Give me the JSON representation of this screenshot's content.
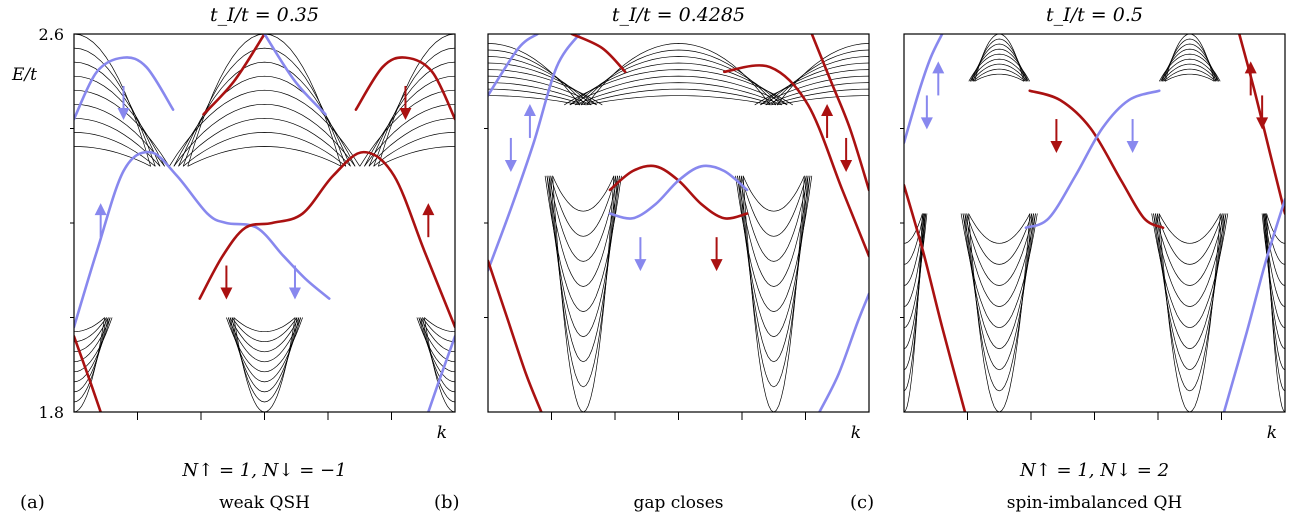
{
  "chart_data": [
    {
      "type": "line",
      "panel_letter": "(a)",
      "title": "t_I/t = 0.35",
      "invariants": "N↑ = 1, N↓ = −1",
      "phase": "weak QSH",
      "xlabel": "k",
      "ylabel": "E/t",
      "ylim": [
        1.8,
        2.6
      ],
      "y_tick_labels": [
        "2.6",
        "1.8"
      ],
      "series": [
        {
          "color": "#8888ee",
          "points": [
            [
              0.0,
              1.98
            ],
            [
              0.06,
              2.14
            ],
            [
              0.13,
              2.31
            ],
            [
              0.2,
              2.35
            ],
            [
              0.27,
              2.3
            ],
            [
              0.35,
              2.22
            ],
            [
              0.4,
              2.2
            ],
            [
              0.48,
              2.19
            ],
            [
              0.55,
              2.13
            ],
            [
              0.61,
              2.08
            ],
            [
              0.67,
              2.04
            ]
          ]
        },
        {
          "color": "#aa1111",
          "points": [
            [
              0.33,
              2.04
            ],
            [
              0.39,
              2.13
            ],
            [
              0.45,
              2.19
            ],
            [
              0.52,
              2.2
            ],
            [
              0.6,
              2.22
            ],
            [
              0.68,
              2.3
            ],
            [
              0.76,
              2.35
            ],
            [
              0.84,
              2.3
            ],
            [
              0.92,
              2.14
            ],
            [
              1.0,
              1.98
            ]
          ]
        },
        {
          "color": "#8888ee",
          "points": [
            [
              0.0,
              2.42
            ],
            [
              0.06,
              2.52
            ],
            [
              0.13,
              2.55
            ],
            [
              0.19,
              2.53
            ],
            [
              0.26,
              2.44
            ]
          ]
        },
        {
          "color": "#aa1111",
          "points": [
            [
              0.74,
              2.44
            ],
            [
              0.81,
              2.53
            ],
            [
              0.87,
              2.55
            ],
            [
              0.94,
              2.52
            ],
            [
              1.0,
              2.42
            ]
          ]
        },
        {
          "color": "#aa1111",
          "points": [
            [
              0.34,
              2.43
            ],
            [
              0.42,
              2.5
            ],
            [
              0.5,
              2.6
            ]
          ]
        },
        {
          "color": "#8888ee",
          "points": [
            [
              0.5,
              2.6
            ],
            [
              0.58,
              2.5
            ],
            [
              0.66,
              2.43
            ]
          ]
        },
        {
          "color": "#aa1111",
          "points": [
            [
              0.0,
              1.96
            ],
            [
              0.04,
              1.87
            ],
            [
              0.07,
              1.8
            ]
          ]
        },
        {
          "color": "#8888ee",
          "points": [
            [
              0.93,
              1.8
            ],
            [
              0.96,
              1.87
            ],
            [
              1.0,
              1.96
            ]
          ]
        }
      ],
      "arrows": [
        {
          "color": "#8888ee",
          "x": 0.13,
          "y": 2.49,
          "dir": "down"
        },
        {
          "color": "#aa1111",
          "x": 0.87,
          "y": 2.49,
          "dir": "down"
        },
        {
          "color": "#8888ee",
          "x": 0.07,
          "y": 2.17,
          "dir": "up"
        },
        {
          "color": "#aa1111",
          "x": 0.93,
          "y": 2.17,
          "dir": "up"
        },
        {
          "color": "#aa1111",
          "x": 0.4,
          "y": 2.11,
          "dir": "down"
        },
        {
          "color": "#8888ee",
          "x": 0.58,
          "y": 2.11,
          "dir": "down"
        }
      ]
    },
    {
      "type": "line",
      "panel_letter": "(b)",
      "title": "t_I/t = 0.4285",
      "invariants": "",
      "phase": "gap closes",
      "xlabel": "k",
      "ylabel": "",
      "ylim": [
        1.8,
        2.6
      ],
      "series": [
        {
          "color": "#aa1111",
          "points": [
            [
              0.32,
              2.27
            ],
            [
              0.38,
              2.31
            ],
            [
              0.44,
              2.32
            ],
            [
              0.5,
              2.29
            ],
            [
              0.56,
              2.24
            ],
            [
              0.62,
              2.21
            ],
            [
              0.68,
              2.22
            ]
          ]
        },
        {
          "color": "#8888ee",
          "points": [
            [
              0.32,
              2.22
            ],
            [
              0.38,
              2.21
            ],
            [
              0.44,
              2.24
            ],
            [
              0.5,
              2.29
            ],
            [
              0.56,
              2.32
            ],
            [
              0.62,
              2.31
            ],
            [
              0.68,
              2.27
            ]
          ]
        },
        {
          "color": "#8888ee",
          "points": [
            [
              0.0,
              2.1
            ],
            [
              0.06,
              2.23
            ],
            [
              0.12,
              2.37
            ],
            [
              0.18,
              2.53
            ],
            [
              0.24,
              2.6
            ]
          ]
        },
        {
          "color": "#aa1111",
          "points": [
            [
              0.62,
              2.52
            ],
            [
              0.74,
              2.53
            ],
            [
              0.84,
              2.45
            ],
            [
              0.93,
              2.27
            ],
            [
              1.0,
              2.13
            ]
          ]
        },
        {
          "color": "#8888ee",
          "points": [
            [
              0.0,
              2.47
            ],
            [
              0.08,
              2.57
            ],
            [
              0.13,
              2.6
            ]
          ]
        },
        {
          "color": "#aa1111",
          "points": [
            [
              0.22,
              2.6
            ],
            [
              0.3,
              2.57
            ],
            [
              0.36,
              2.52
            ]
          ]
        },
        {
          "color": "#aa1111",
          "points": [
            [
              0.85,
              2.6
            ],
            [
              0.9,
              2.5
            ],
            [
              0.95,
              2.4
            ],
            [
              1.0,
              2.27
            ]
          ]
        },
        {
          "color": "#aa1111",
          "points": [
            [
              0.0,
              2.12
            ],
            [
              0.05,
              2.0
            ],
            [
              0.1,
              1.88
            ],
            [
              0.14,
              1.8
            ]
          ]
        },
        {
          "color": "#8888ee",
          "points": [
            [
              0.87,
              1.8
            ],
            [
              0.92,
              1.88
            ],
            [
              0.97,
              1.99
            ],
            [
              1.0,
              2.05
            ]
          ]
        }
      ],
      "arrows": [
        {
          "color": "#8888ee",
          "x": 0.06,
          "y": 2.38,
          "dir": "down"
        },
        {
          "color": "#8888ee",
          "x": 0.11,
          "y": 2.38,
          "dir": "up"
        },
        {
          "color": "#aa1111",
          "x": 0.89,
          "y": 2.38,
          "dir": "up"
        },
        {
          "color": "#aa1111",
          "x": 0.94,
          "y": 2.38,
          "dir": "down"
        },
        {
          "color": "#8888ee",
          "x": 0.4,
          "y": 2.17,
          "dir": "down"
        },
        {
          "color": "#aa1111",
          "x": 0.6,
          "y": 2.17,
          "dir": "down"
        }
      ]
    },
    {
      "type": "line",
      "panel_letter": "(c)",
      "title": "t_I/t = 0.5",
      "invariants": "N↑ = 1, N↓ = 2",
      "phase": "spin-imbalanced QH",
      "xlabel": "k",
      "ylabel": "",
      "ylim": [
        1.8,
        2.6
      ],
      "series": [
        {
          "color": "#aa1111",
          "points": [
            [
              0.33,
              2.48
            ],
            [
              0.41,
              2.46
            ],
            [
              0.49,
              2.4
            ],
            [
              0.57,
              2.29
            ],
            [
              0.63,
              2.21
            ],
            [
              0.68,
              2.19
            ]
          ]
        },
        {
          "color": "#8888ee",
          "points": [
            [
              0.32,
              2.19
            ],
            [
              0.38,
              2.21
            ],
            [
              0.45,
              2.3
            ],
            [
              0.52,
              2.4
            ],
            [
              0.59,
              2.46
            ],
            [
              0.67,
              2.48
            ]
          ]
        },
        {
          "color": "#8888ee",
          "points": [
            [
              0.0,
              2.37
            ],
            [
              0.04,
              2.48
            ],
            [
              0.07,
              2.55
            ],
            [
              0.1,
              2.6
            ]
          ]
        },
        {
          "color": "#aa1111",
          "points": [
            [
              0.88,
              2.6
            ],
            [
              0.92,
              2.48
            ],
            [
              0.96,
              2.35
            ],
            [
              1.0,
              2.22
            ]
          ]
        },
        {
          "color": "#aa1111",
          "points": [
            [
              0.0,
              2.28
            ],
            [
              0.05,
              2.14
            ],
            [
              0.1,
              1.98
            ],
            [
              0.16,
              1.8
            ]
          ]
        },
        {
          "color": "#8888ee",
          "points": [
            [
              0.84,
              1.8
            ],
            [
              0.9,
              1.97
            ],
            [
              0.95,
              2.12
            ],
            [
              1.0,
              2.25
            ]
          ]
        }
      ],
      "arrows": [
        {
          "color": "#8888ee",
          "x": 0.06,
          "y": 2.47,
          "dir": "down"
        },
        {
          "color": "#8888ee",
          "x": 0.09,
          "y": 2.47,
          "dir": "up"
        },
        {
          "color": "#aa1111",
          "x": 0.91,
          "y": 2.47,
          "dir": "up"
        },
        {
          "color": "#aa1111",
          "x": 0.94,
          "y": 2.47,
          "dir": "down"
        },
        {
          "color": "#aa1111",
          "x": 0.4,
          "y": 2.42,
          "dir": "down"
        },
        {
          "color": "#8888ee",
          "x": 0.6,
          "y": 2.42,
          "dir": "down"
        }
      ]
    }
  ]
}
